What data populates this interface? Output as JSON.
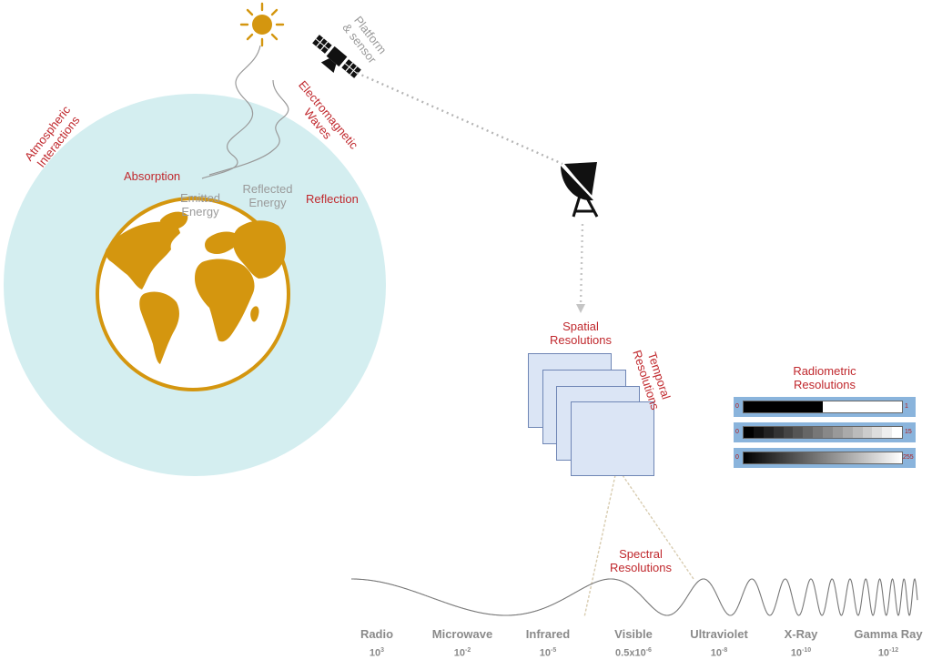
{
  "labels": {
    "atmospheric": "Atmospheric\nInteractions",
    "platform": "Platform\n& sensor",
    "em_waves": "Electromagnetic\nWaves",
    "absorption": "Absorption",
    "emitted": "Emitted\nEnergy",
    "reflected_energy": "Reflected\nEnergy",
    "reflection": "Reflection",
    "spatial": "Spatial\nResolutions",
    "temporal": "Temporal\nResolutions",
    "radiometric": "Radiometric\nResolutions",
    "spectral": "Spectral\nResolutions"
  },
  "radiometric_levels": [
    {
      "min": "0",
      "max": "1"
    },
    {
      "min": "0",
      "max": "15"
    },
    {
      "min": "0",
      "max": "255"
    }
  ],
  "spectrum": [
    {
      "name": "Radio",
      "base": "10",
      "exp": "3"
    },
    {
      "name": "Microwave",
      "base": "10",
      "exp": "-2"
    },
    {
      "name": "Infrared",
      "base": "10",
      "exp": "-5"
    },
    {
      "name": "Visible",
      "base": "0.5x10",
      "exp": "-6"
    },
    {
      "name": "Ultraviolet",
      "base": "10",
      "exp": "-8"
    },
    {
      "name": "X-Ray",
      "base": "10",
      "exp": "-10"
    },
    {
      "name": "Gamma Ray",
      "base": "10",
      "exp": "-12"
    }
  ],
  "colors": {
    "atmosphere": "#d4eef0",
    "earth": "#d4960f",
    "label_red": "#c0282d",
    "frame_fill": "#dbe5f5",
    "radiometric_bg": "#8ab4dc"
  },
  "icons": [
    "sun-icon",
    "satellite-icon",
    "ground-station-icon",
    "earth-globe-icon"
  ]
}
